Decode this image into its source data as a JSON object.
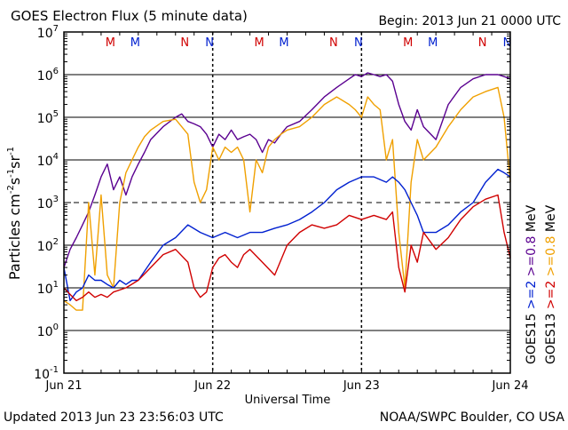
{
  "chart_data": {
    "type": "line",
    "title": "GOES Electron Flux (5 minute data)",
    "begin_label": "Begin: 2013 Jun 21 0000 UTC",
    "xlabel": "Universal Time",
    "ylabel_parts": {
      "base": "Particles cm",
      "exp1": "-2",
      "s": "s",
      "exp2": "-1",
      "sr": "sr",
      "exp3": "-1"
    },
    "yscale": "log",
    "ylim": [
      0.1,
      10000000
    ],
    "xlim": [
      0,
      72
    ],
    "x_unit": "hours since 2013 Jun 21 0000 UTC",
    "x_ticks": [
      {
        "x": 0,
        "label": "Jun 21"
      },
      {
        "x": 24,
        "label": "Jun 22"
      },
      {
        "x": 48,
        "label": "Jun 23"
      },
      {
        "x": 72,
        "label": "Jun 24"
      }
    ],
    "y_ticks": [
      {
        "value": 0.1,
        "base": "10",
        "exp": "-1"
      },
      {
        "value": 1,
        "base": "10",
        "exp": "0"
      },
      {
        "value": 10,
        "base": "10",
        "exp": "1"
      },
      {
        "value": 100,
        "base": "10",
        "exp": "2"
      },
      {
        "value": 1000,
        "base": "10",
        "exp": "3"
      },
      {
        "value": 10000,
        "base": "10",
        "exp": "4"
      },
      {
        "value": 100000,
        "base": "10",
        "exp": "5"
      },
      {
        "value": 1000000,
        "base": "10",
        "exp": "6"
      },
      {
        "value": 10000000,
        "base": "10",
        "exp": "7"
      }
    ],
    "grid": "horizontal solid lines at decades; dashed line at 1000; dashed verticals at day boundaries",
    "reference_line": 1000,
    "mn_markers": [
      {
        "x": 7.5,
        "label": "M",
        "color": "#d00000"
      },
      {
        "x": 11.5,
        "label": "M",
        "color": "#0020d0"
      },
      {
        "x": 19.5,
        "label": "N",
        "color": "#d00000"
      },
      {
        "x": 23.5,
        "label": "N",
        "color": "#0020d0"
      },
      {
        "x": 31.5,
        "label": "M",
        "color": "#d00000"
      },
      {
        "x": 35.5,
        "label": "M",
        "color": "#0020d0"
      },
      {
        "x": 43.5,
        "label": "N",
        "color": "#d00000"
      },
      {
        "x": 47.5,
        "label": "N",
        "color": "#0020d0"
      },
      {
        "x": 55.5,
        "label": "M",
        "color": "#d00000"
      },
      {
        "x": 59.5,
        "label": "M",
        "color": "#0020d0"
      },
      {
        "x": 67.5,
        "label": "N",
        "color": "#d00000"
      },
      {
        "x": 71.5,
        "label": "N",
        "color": "#0020d0"
      }
    ],
    "right_legend": [
      {
        "label": "GOES15",
        "color": "#000000"
      },
      {
        "label": ">=2",
        "color": "#0020d0"
      },
      {
        "label": ">=0.8",
        "color": "#5a0090"
      },
      {
        "label": "MeV",
        "color": "#000000"
      },
      {
        "label": "GOES13",
        "color": "#000000"
      },
      {
        "label": ">=2",
        "color": "#d00000"
      },
      {
        "label": ">=0.8",
        "color": "#f0a000"
      },
      {
        "label": "MeV",
        "color": "#000000"
      }
    ],
    "series": [
      {
        "name": "GOES15 >=0.8 MeV",
        "color": "#5a0090",
        "x": [
          0,
          1,
          2,
          3,
          4,
          5,
          6,
          7,
          8,
          9,
          10,
          11,
          12,
          13,
          14,
          16,
          18,
          19,
          20,
          21,
          22,
          23,
          24,
          25,
          26,
          27,
          28,
          29,
          30,
          31,
          32,
          33,
          34,
          35,
          36,
          38,
          40,
          42,
          44,
          46,
          47,
          48,
          49,
          50,
          51,
          52,
          53,
          54,
          55,
          56,
          57,
          58,
          60,
          62,
          64,
          66,
          68,
          70,
          71,
          72
        ],
        "y": [
          30,
          80,
          150,
          300,
          600,
          1500,
          4000,
          8000,
          2000,
          4000,
          1500,
          4000,
          8000,
          15000,
          30000,
          60000,
          100000,
          120000,
          80000,
          70000,
          60000,
          40000,
          20000,
          40000,
          30000,
          50000,
          30000,
          35000,
          40000,
          30000,
          15000,
          30000,
          25000,
          40000,
          60000,
          80000,
          150000,
          300000,
          500000,
          800000,
          1000000,
          900000,
          1100000,
          1000000,
          900000,
          1000000,
          700000,
          200000,
          80000,
          50000,
          150000,
          60000,
          30000,
          200000,
          500000,
          800000,
          1000000,
          1000000,
          900000,
          800000
        ]
      },
      {
        "name": "GOES13 >=0.8 MeV",
        "color": "#f0a000",
        "x": [
          0,
          1,
          2,
          3,
          4,
          5,
          6,
          7,
          8,
          9,
          10,
          11,
          12,
          13,
          14,
          16,
          18,
          20,
          21,
          22,
          23,
          24,
          25,
          26,
          27,
          28,
          29,
          30,
          31,
          32,
          33,
          34,
          35,
          36,
          38,
          40,
          42,
          44,
          46,
          47,
          48,
          49,
          50,
          51,
          52,
          53,
          54,
          55,
          56,
          57,
          58,
          60,
          62,
          64,
          66,
          68,
          70,
          71,
          72
        ],
        "y": [
          5,
          4,
          3,
          3,
          1000,
          20,
          1500,
          20,
          10,
          1000,
          5000,
          10000,
          20000,
          35000,
          50000,
          80000,
          90000,
          40000,
          3000,
          1000,
          2000,
          20000,
          10000,
          20000,
          15000,
          20000,
          10000,
          600,
          10000,
          5000,
          20000,
          30000,
          40000,
          50000,
          60000,
          100000,
          200000,
          300000,
          200000,
          150000,
          100000,
          300000,
          200000,
          150000,
          10000,
          30000,
          200,
          10,
          3000,
          30000,
          10000,
          20000,
          60000,
          150000,
          300000,
          400000,
          500000,
          100000,
          3000
        ]
      },
      {
        "name": "GOES15 >=2 MeV",
        "color": "#0020d0",
        "x": [
          0,
          1,
          2,
          3,
          4,
          5,
          6,
          7,
          8,
          9,
          10,
          11,
          12,
          14,
          16,
          18,
          20,
          22,
          24,
          26,
          28,
          30,
          32,
          34,
          36,
          38,
          40,
          42,
          44,
          46,
          48,
          50,
          52,
          53,
          54,
          55,
          56,
          57,
          58,
          60,
          62,
          64,
          66,
          68,
          70,
          71,
          72
        ],
        "y": [
          30,
          5,
          8,
          10,
          20,
          15,
          15,
          12,
          10,
          15,
          12,
          15,
          15,
          40,
          100,
          150,
          300,
          200,
          150,
          200,
          150,
          200,
          200,
          250,
          300,
          400,
          600,
          1000,
          2000,
          3000,
          4000,
          4000,
          3000,
          4000,
          3000,
          2000,
          1000,
          500,
          200,
          200,
          300,
          600,
          1000,
          3000,
          6000,
          5000,
          4000
        ]
      },
      {
        "name": "GOES13 >=2 MeV",
        "color": "#d00000",
        "x": [
          0,
          1,
          2,
          3,
          4,
          5,
          6,
          7,
          8,
          10,
          12,
          14,
          16,
          18,
          20,
          21,
          22,
          23,
          24,
          25,
          26,
          27,
          28,
          29,
          30,
          32,
          34,
          36,
          38,
          40,
          42,
          44,
          46,
          48,
          50,
          52,
          53,
          54,
          55,
          56,
          57,
          58,
          60,
          62,
          64,
          66,
          68,
          70,
          71,
          72
        ],
        "y": [
          10,
          7,
          5,
          6,
          8,
          6,
          7,
          6,
          8,
          10,
          15,
          30,
          60,
          80,
          40,
          10,
          6,
          8,
          30,
          50,
          60,
          40,
          30,
          60,
          80,
          40,
          20,
          100,
          200,
          300,
          250,
          300,
          500,
          400,
          500,
          400,
          600,
          30,
          8,
          100,
          40,
          200,
          80,
          150,
          400,
          800,
          1200,
          1500,
          200,
          50
        ]
      }
    ]
  },
  "footer": {
    "updated": "Updated 2013 Jun 23 23:56:03 UTC",
    "credit": "NOAA/SWPC Boulder, CO USA"
  }
}
